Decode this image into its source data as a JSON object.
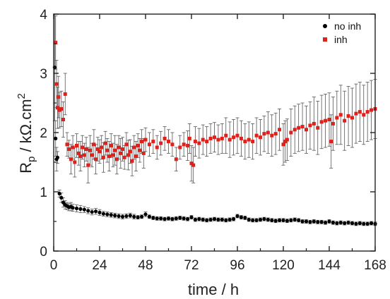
{
  "chart_data": {
    "type": "scatter",
    "title": "",
    "xlabel": "time / h",
    "ylabel_main": "R",
    "ylabel_sub": "p",
    "ylabel_rest": " / kΩ.cm",
    "ylabel_sup": "2",
    "xlim": [
      0,
      168
    ],
    "ylim": [
      0,
      4
    ],
    "xticks": [
      "0",
      "24",
      "48",
      "72",
      "96",
      "120",
      "144",
      "168"
    ],
    "yticks": [
      "0",
      "1",
      "2",
      "3",
      "4"
    ],
    "grid": false,
    "legend_position": "top-right",
    "colors": {
      "no_inh": "#000000",
      "inh": "#e0201b",
      "error_bar": "#555555"
    },
    "series": [
      {
        "name": "no inh",
        "marker": "circle",
        "x": [
          0.5,
          1,
          1.5,
          2,
          3,
          4,
          5,
          6,
          7,
          8,
          9,
          10,
          12,
          14,
          16,
          18,
          20,
          22,
          24,
          26,
          28,
          30,
          32,
          34,
          36,
          38,
          40,
          42,
          44,
          46,
          48,
          50,
          52,
          54,
          56,
          58,
          60,
          62,
          64,
          66,
          68,
          70,
          72,
          74,
          76,
          78,
          80,
          82,
          84,
          86,
          88,
          90,
          92,
          94,
          96,
          98,
          100,
          102,
          104,
          106,
          108,
          110,
          112,
          114,
          116,
          118,
          120,
          122,
          124,
          126,
          128,
          130,
          132,
          134,
          136,
          138,
          140,
          142,
          144,
          146,
          148,
          150,
          152,
          154,
          156,
          158,
          160,
          162,
          164,
          166,
          168
        ],
        "y": [
          3.1,
          1.9,
          1.55,
          1.58,
          0.97,
          0.9,
          0.82,
          0.78,
          0.76,
          0.74,
          0.75,
          0.73,
          0.72,
          0.71,
          0.7,
          0.68,
          0.66,
          0.67,
          0.65,
          0.63,
          0.62,
          0.61,
          0.6,
          0.59,
          0.58,
          0.59,
          0.6,
          0.58,
          0.57,
          0.58,
          0.62,
          0.58,
          0.56,
          0.55,
          0.55,
          0.54,
          0.55,
          0.54,
          0.55,
          0.56,
          0.55,
          0.54,
          0.57,
          0.53,
          0.54,
          0.53,
          0.52,
          0.53,
          0.54,
          0.53,
          0.53,
          0.52,
          0.53,
          0.54,
          0.59,
          0.57,
          0.56,
          0.53,
          0.52,
          0.52,
          0.53,
          0.54,
          0.53,
          0.52,
          0.51,
          0.52,
          0.52,
          0.51,
          0.52,
          0.53,
          0.52,
          0.5,
          0.5,
          0.49,
          0.5,
          0.49,
          0.49,
          0.48,
          0.5,
          0.48,
          0.47,
          0.48,
          0.47,
          0.48,
          0.47,
          0.46,
          0.47,
          0.46,
          0.46,
          0.47,
          0.46
        ],
        "err": [
          0.9,
          0.3,
          0.2,
          0.1,
          0.06,
          0.08,
          0.08,
          0.07,
          0.06,
          0.06,
          0.07,
          0.06,
          0.06,
          0.06,
          0.05,
          0.05,
          0.05,
          0.05,
          0.05,
          0.04,
          0.04,
          0.04,
          0.04,
          0.04,
          0.04,
          0.04,
          0.04,
          0.04,
          0.03,
          0.03,
          0.04,
          0.03,
          0.03,
          0.03,
          0.03,
          0.03,
          0.03,
          0.03,
          0.03,
          0.03,
          0.03,
          0.03,
          0.03,
          0.03,
          0.03,
          0.03,
          0.03,
          0.03,
          0.03,
          0.03,
          0.03,
          0.03,
          0.03,
          0.03,
          0.03,
          0.03,
          0.03,
          0.03,
          0.03,
          0.03,
          0.03,
          0.03,
          0.03,
          0.03,
          0.03,
          0.03,
          0.03,
          0.03,
          0.03,
          0.03,
          0.03,
          0.03,
          0.03,
          0.03,
          0.03,
          0.03,
          0.03,
          0.03,
          0.03,
          0.03,
          0.03,
          0.03,
          0.03,
          0.03,
          0.03,
          0.03,
          0.03,
          0.03,
          0.03,
          0.03,
          0.03
        ]
      },
      {
        "name": "inh",
        "marker": "square",
        "x": [
          1,
          1.5,
          2,
          2.5,
          3,
          4,
          5,
          6,
          7,
          8,
          9,
          10,
          11,
          12,
          13,
          14,
          15,
          16,
          17,
          18,
          19,
          20,
          21,
          22,
          23,
          24,
          25,
          26,
          27,
          28,
          29,
          30,
          31,
          32,
          33,
          34,
          35,
          36,
          37,
          38,
          39,
          40,
          41,
          42,
          43,
          44,
          45,
          46,
          47,
          48,
          50,
          52,
          54,
          56,
          58,
          60,
          62,
          64,
          66,
          68,
          70,
          71,
          72,
          73,
          74,
          76,
          78,
          80,
          82,
          84,
          86,
          88,
          90,
          92,
          94,
          96,
          98,
          100,
          102,
          104,
          106,
          108,
          110,
          112,
          114,
          116,
          118,
          120,
          121,
          122,
          124,
          126,
          128,
          130,
          132,
          134,
          136,
          138,
          140,
          142,
          144,
          145,
          146,
          148,
          150,
          152,
          154,
          156,
          158,
          160,
          162,
          164,
          166,
          168
        ],
        "y": [
          3.52,
          2.82,
          2.42,
          2.6,
          2.38,
          2.4,
          2.22,
          2.65,
          1.8,
          1.72,
          1.55,
          1.75,
          1.5,
          1.78,
          1.65,
          1.6,
          1.75,
          1.62,
          1.72,
          1.45,
          1.7,
          1.62,
          1.8,
          1.55,
          1.72,
          1.68,
          1.75,
          1.58,
          1.82,
          1.7,
          1.6,
          1.78,
          1.62,
          1.7,
          1.55,
          1.75,
          1.65,
          1.72,
          1.58,
          1.8,
          1.62,
          1.68,
          1.52,
          1.75,
          1.6,
          1.78,
          1.7,
          1.85,
          1.65,
          1.88,
          1.8,
          1.85,
          1.75,
          1.82,
          1.9,
          1.85,
          1.8,
          1.55,
          1.75,
          1.8,
          1.78,
          1.9,
          1.48,
          1.45,
          1.85,
          1.82,
          1.88,
          1.85,
          1.9,
          1.92,
          1.88,
          1.9,
          1.95,
          1.88,
          1.92,
          1.95,
          1.9,
          1.85,
          1.88,
          1.85,
          1.95,
          1.92,
          1.98,
          2.0,
          1.95,
          1.98,
          2.05,
          1.8,
          1.85,
          1.88,
          2.0,
          2.05,
          2.08,
          2.1,
          2.05,
          2.12,
          2.15,
          2.08,
          2.18,
          2.2,
          2.22,
          1.85,
          2.15,
          2.25,
          2.3,
          2.2,
          2.28,
          2.25,
          2.32,
          2.35,
          2.3,
          2.35,
          2.38,
          2.4
        ],
        "err": [
          0.45,
          0.4,
          0.35,
          0.35,
          0.3,
          0.3,
          0.3,
          0.35,
          0.2,
          0.15,
          0.25,
          0.2,
          0.25,
          0.2,
          0.2,
          0.25,
          0.2,
          0.2,
          0.2,
          0.3,
          0.25,
          0.2,
          0.25,
          0.25,
          0.2,
          0.2,
          0.2,
          0.25,
          0.2,
          0.2,
          0.25,
          0.2,
          0.2,
          0.25,
          0.25,
          0.2,
          0.25,
          0.2,
          0.2,
          0.2,
          0.25,
          0.2,
          0.25,
          0.2,
          0.25,
          0.2,
          0.2,
          0.2,
          0.25,
          0.2,
          0.2,
          0.2,
          0.2,
          0.2,
          0.2,
          0.2,
          0.2,
          0.2,
          0.2,
          0.2,
          0.25,
          0.25,
          0.3,
          0.3,
          0.25,
          0.25,
          0.25,
          0.25,
          0.25,
          0.25,
          0.25,
          0.25,
          0.3,
          0.3,
          0.3,
          0.3,
          0.3,
          0.3,
          0.3,
          0.3,
          0.3,
          0.3,
          0.3,
          0.35,
          0.35,
          0.35,
          0.35,
          0.35,
          0.35,
          0.35,
          0.4,
          0.4,
          0.4,
          0.4,
          0.4,
          0.4,
          0.45,
          0.45,
          0.45,
          0.45,
          0.45,
          0.45,
          0.45,
          0.45,
          0.5,
          0.5,
          0.5,
          0.5,
          0.5,
          0.5,
          0.5,
          0.5,
          0.5,
          0.5
        ]
      }
    ]
  }
}
